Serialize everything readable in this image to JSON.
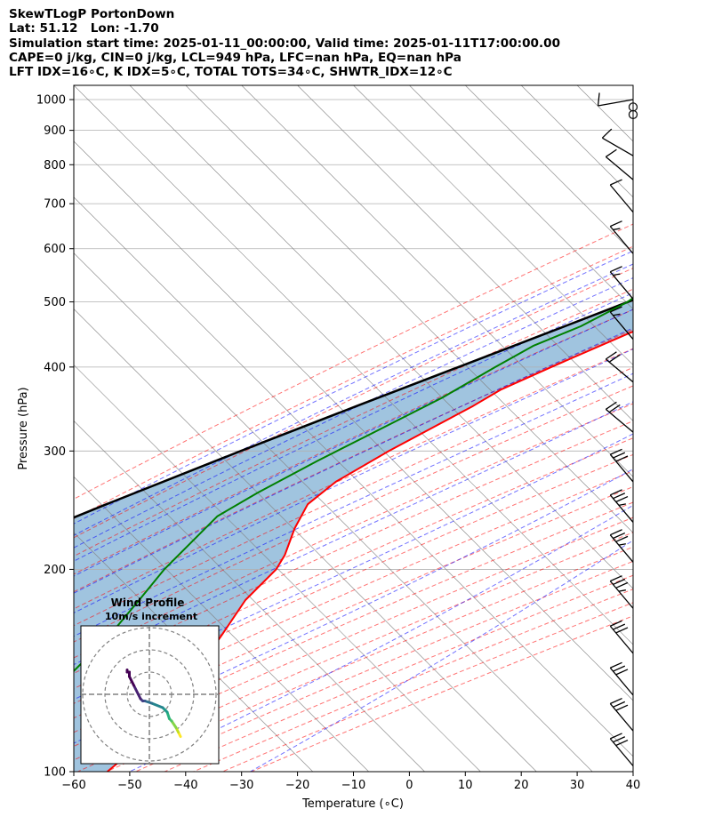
{
  "header": {
    "line1": "SkewTLogP PortonDown",
    "line2": "Lat: 51.12   Lon: -1.70",
    "line3": "Simulation start time: 2025-01-11_00:00:00, Valid time: 2025-01-11T17:00:00.00",
    "line4": "CAPE=0 j/kg, CIN=0 j/kg, LCL=949 hPa, LFC=nan hPa, EQ=nan hPa",
    "line5": "LFT IDX=16∘C, K IDX=5∘C, TOTAL TOTS=34∘C, SHWTR_IDX=12∘C"
  },
  "colors": {
    "temperature": "#ff0000",
    "dewpoint": "#008000",
    "parcel": "#000000",
    "cape_fill": "#a0c4df",
    "dry_adiabat": "#ff0000",
    "moist_adiabat": "#0000ff",
    "isotherm": "#808080",
    "grid": "#b0b0b0"
  },
  "chart_data": {
    "type": "skewt",
    "xlabel": "Temperature (∘C)",
    "ylabel": "Pressure (hPa)",
    "xlim": [
      -60,
      40
    ],
    "ylim": [
      1050,
      100
    ],
    "yscale": "log",
    "grid": true,
    "x_ticks": [
      -60,
      -50,
      -40,
      -30,
      -20,
      -10,
      0,
      10,
      20,
      30,
      40
    ],
    "y_ticks": [
      1000,
      900,
      800,
      700,
      600,
      500,
      400,
      300,
      200,
      100
    ],
    "temperature": {
      "pressure": [
        1015,
        1000,
        950,
        900,
        850,
        800,
        750,
        700,
        650,
        600,
        550,
        500,
        450,
        400,
        370,
        350,
        300,
        270,
        250,
        230,
        210,
        200,
        180,
        160,
        150,
        130,
        120,
        110,
        100
      ],
      "values": [
        3,
        4,
        4,
        4.5,
        5,
        4,
        1,
        -3,
        -8,
        -14,
        -22,
        -30,
        -39,
        -47,
        -52,
        -54,
        -61,
        -65,
        -66,
        -64,
        -61,
        -60,
        -60,
        -58,
        -57,
        -52,
        -52,
        -53,
        -54
      ]
    },
    "dewpoint": {
      "pressure": [
        1015,
        1000,
        980,
        960,
        940,
        910,
        895,
        880,
        860,
        840,
        820,
        800,
        780,
        760,
        720,
        690,
        660,
        620,
        590,
        550,
        500,
        460,
        430,
        400,
        360,
        320,
        290,
        260,
        240,
        220,
        200,
        180,
        160,
        140,
        120,
        110,
        100
      ],
      "values": [
        0,
        -5,
        -8,
        -6,
        -3,
        -7,
        -12,
        -16,
        -12,
        -8,
        -5,
        -4,
        -1,
        0,
        -3,
        -10,
        -20,
        -30,
        -42,
        -43,
        -45,
        -49,
        -54,
        -57,
        -61,
        -67,
        -72,
        -77,
        -80,
        -80,
        -80,
        -79,
        -78,
        -78,
        -74,
        -70,
        -68
      ]
    },
    "parcel": {
      "pressure": [
        1015,
        949,
        900,
        850,
        800,
        750,
        700,
        650,
        600,
        550,
        500,
        450,
        400,
        350,
        300,
        250,
        200,
        150,
        120,
        100
      ],
      "values": [
        0,
        -1,
        -3.5,
        -6.7,
        -10.3,
        -14.5,
        -19.1,
        -24.4,
        -30.3,
        -37.1,
        -44.9,
        -53.7,
        -63.6,
        -74.8,
        -87.5,
        -102,
        -119,
        -141,
        -158,
        -170
      ]
    },
    "wind_barbs": {
      "pressure": [
        1000,
        975,
        950,
        825,
        760,
        680,
        590,
        505,
        440,
        380,
        320,
        270,
        235,
        205,
        175,
        150,
        130,
        115,
        102
      ],
      "speed_kt": [
        10,
        5,
        5,
        10,
        10,
        10,
        15,
        15,
        15,
        20,
        20,
        30,
        35,
        35,
        35,
        30,
        30,
        30,
        30
      ],
      "direction_deg": [
        260,
        0,
        0,
        300,
        310,
        320,
        320,
        320,
        320,
        310,
        310,
        320,
        320,
        320,
        320,
        320,
        320,
        320,
        320
      ]
    },
    "hodograph": {
      "title": "Wind Profile",
      "subtitle": "10m/s increment",
      "rings_ms": [
        10,
        20,
        30
      ],
      "u": [
        14,
        13,
        12,
        10,
        9,
        8,
        6,
        1,
        -2,
        -3,
        -4,
        -7,
        -9,
        -9,
        -10,
        -10
      ],
      "v": [
        -19,
        -17,
        -15,
        -12,
        -11,
        -8,
        -6,
        -4,
        -3,
        -3,
        -2,
        4,
        8,
        10,
        10,
        11
      ]
    }
  }
}
